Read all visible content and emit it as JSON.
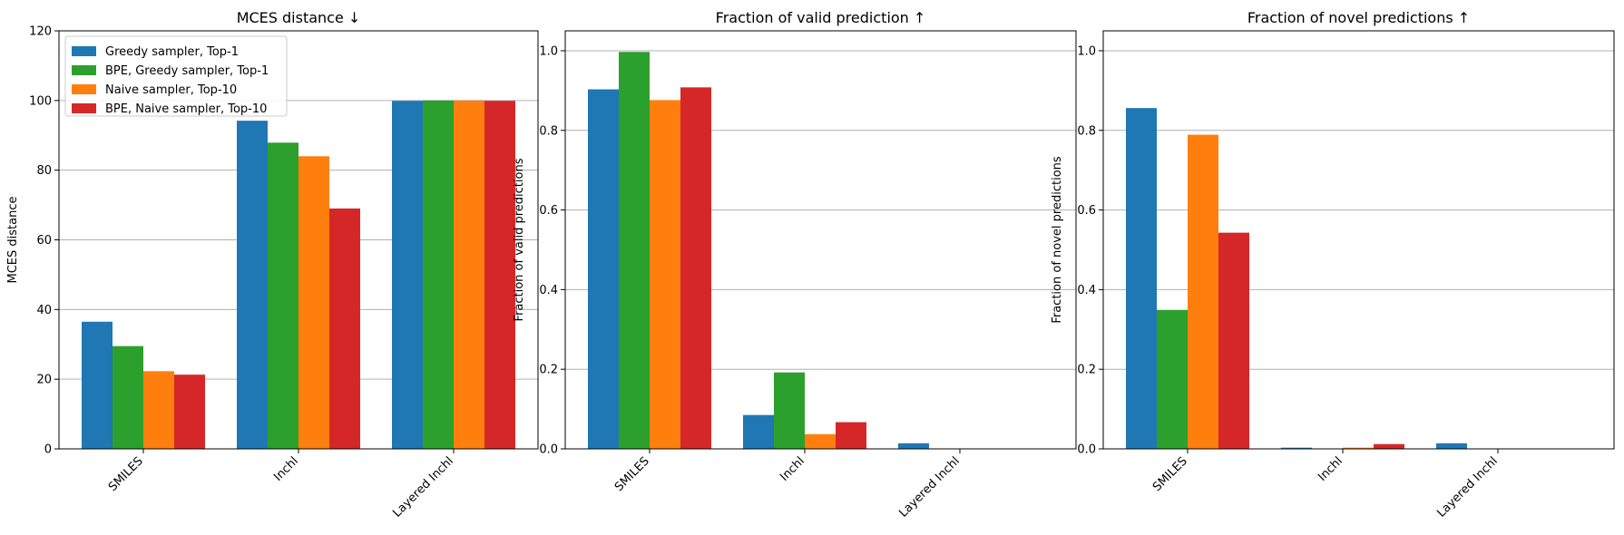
{
  "legend": {
    "placement": "upper-left of first panel",
    "entries": [
      {
        "label": "Greedy sampler, Top-1",
        "color": "#1f77b4"
      },
      {
        "label": "BPE, Greedy sampler, Top-1",
        "color": "#2ca02c"
      },
      {
        "label": "Naive sampler, Top-10",
        "color": "#ff7f0e"
      },
      {
        "label": "BPE, Naive sampler, Top-10",
        "color": "#d62728"
      }
    ]
  },
  "chart_data": [
    {
      "type": "bar",
      "title": "MCES distance ↓",
      "ylabel": "MCES distance",
      "xlabel": "",
      "categories": [
        "SMILES",
        "Inchl",
        "Layered Inchl"
      ],
      "ylim": [
        0,
        120
      ],
      "yticks": [
        0,
        20,
        40,
        60,
        80,
        100,
        120
      ],
      "ytick_labels": [
        "0",
        "20",
        "40",
        "60",
        "80",
        "100",
        "120"
      ],
      "grid": "horizontal",
      "series": [
        {
          "name": "Greedy sampler, Top-1",
          "color": "#1f77b4",
          "values": [
            36.5,
            94.2,
            99.9
          ]
        },
        {
          "name": "BPE, Greedy sampler, Top-1",
          "color": "#2ca02c",
          "values": [
            29.5,
            87.9,
            100.0
          ]
        },
        {
          "name": "Naive sampler, Top-10",
          "color": "#ff7f0e",
          "values": [
            22.3,
            84.0,
            100.0
          ]
        },
        {
          "name": "BPE, Naive sampler, Top-10",
          "color": "#d62728",
          "values": [
            21.3,
            69.0,
            99.9
          ]
        }
      ]
    },
    {
      "type": "bar",
      "title": "Fraction of valid prediction ↑",
      "ylabel": "Fraction of valid predictions",
      "xlabel": "",
      "categories": [
        "SMILES",
        "Inchl",
        "Layered Inchl"
      ],
      "ylim": [
        0,
        1.05
      ],
      "yticks": [
        0,
        0.2,
        0.4,
        0.6,
        0.8,
        1.0
      ],
      "ytick_labels": [
        "0.0",
        "0.2",
        "0.4",
        "0.6",
        "0.8",
        "1.0"
      ],
      "grid": "horizontal",
      "series": [
        {
          "name": "Greedy sampler, Top-1",
          "color": "#1f77b4",
          "values": [
            0.903,
            0.085,
            0.014
          ]
        },
        {
          "name": "BPE, Greedy sampler, Top-1",
          "color": "#2ca02c",
          "values": [
            0.997,
            0.192,
            0.0
          ]
        },
        {
          "name": "Naive sampler, Top-10",
          "color": "#ff7f0e",
          "values": [
            0.876,
            0.037,
            0.0
          ]
        },
        {
          "name": "BPE, Naive sampler, Top-10",
          "color": "#d62728",
          "values": [
            0.908,
            0.067,
            0.0
          ]
        }
      ]
    },
    {
      "type": "bar",
      "title": "Fraction of novel predictions ↑",
      "ylabel": "Fraction of novel predictions",
      "xlabel": "",
      "categories": [
        "SMILES",
        "Inchl",
        "Layered Inchl"
      ],
      "ylim": [
        0,
        1.05
      ],
      "yticks": [
        0,
        0.2,
        0.4,
        0.6,
        0.8,
        1.0
      ],
      "ytick_labels": [
        "0.0",
        "0.2",
        "0.4",
        "0.6",
        "0.8",
        "1.0"
      ],
      "grid": "horizontal",
      "series": [
        {
          "name": "Greedy sampler, Top-1",
          "color": "#1f77b4",
          "values": [
            0.856,
            0.003,
            0.014
          ]
        },
        {
          "name": "BPE, Greedy sampler, Top-1",
          "color": "#2ca02c",
          "values": [
            0.349,
            0.0,
            0.0
          ]
        },
        {
          "name": "Naive sampler, Top-10",
          "color": "#ff7f0e",
          "values": [
            0.789,
            0.003,
            0.0
          ]
        },
        {
          "name": "BPE, Naive sampler, Top-10",
          "color": "#d62728",
          "values": [
            0.543,
            0.012,
            0.0
          ]
        }
      ]
    }
  ]
}
